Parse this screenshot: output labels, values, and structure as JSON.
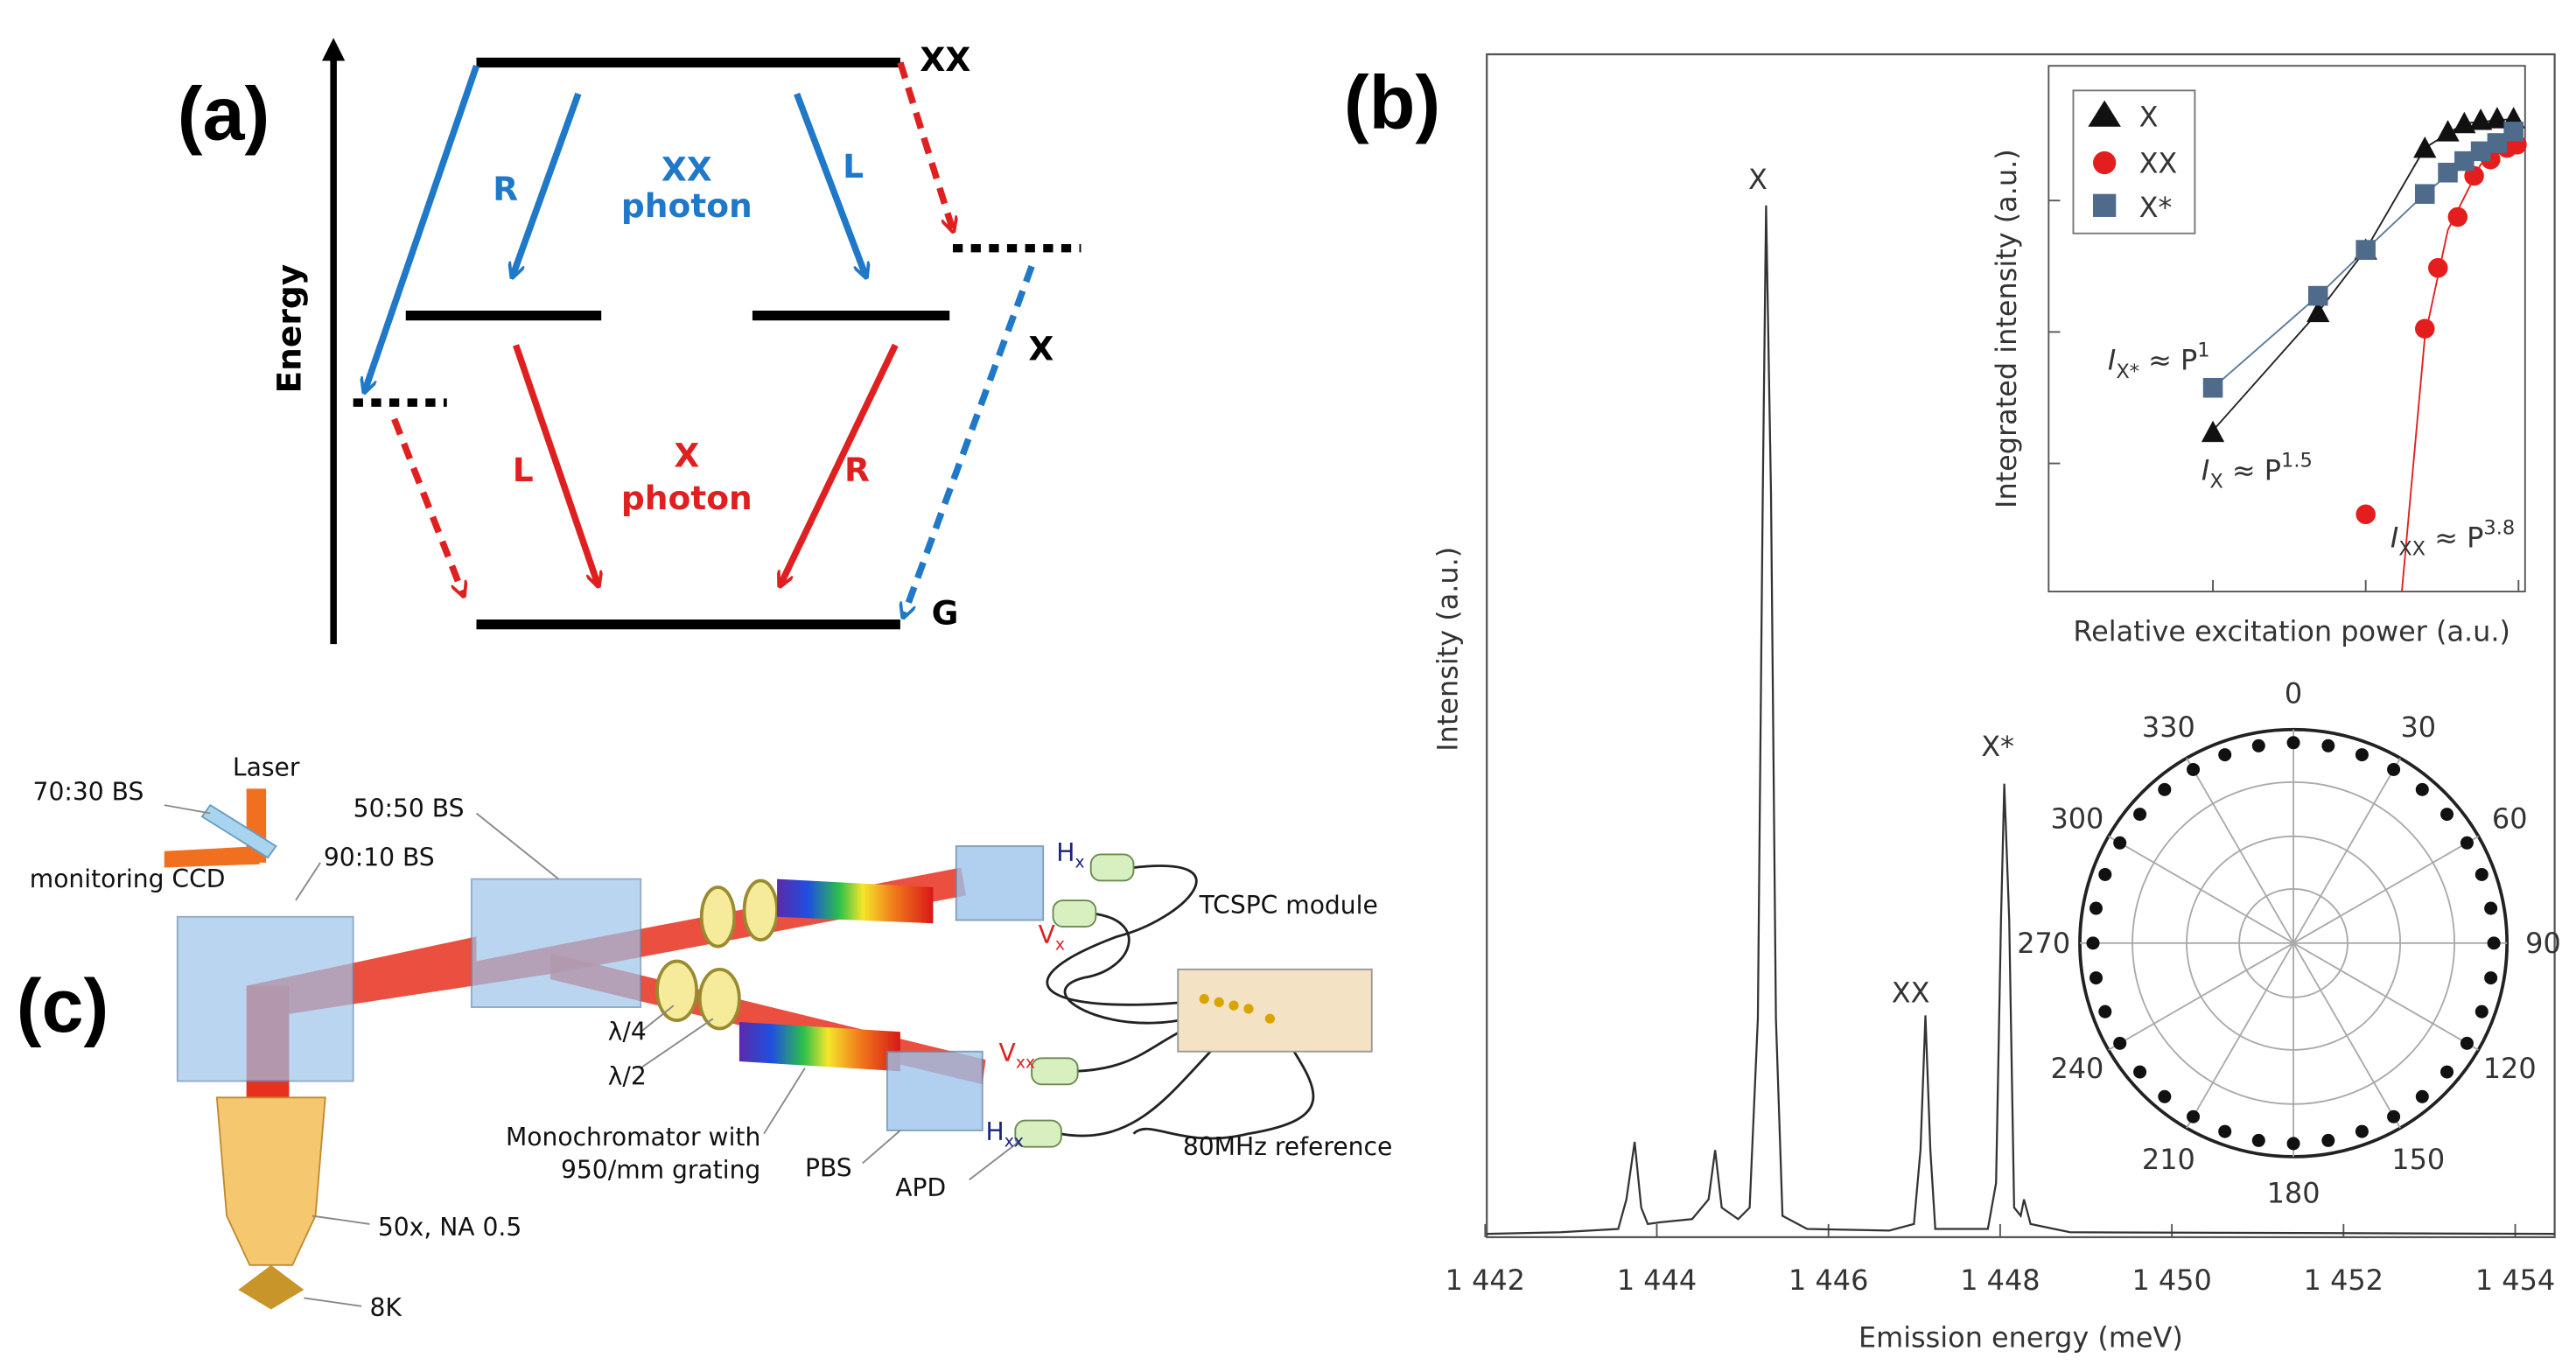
{
  "panel_a": {
    "label": "(a)",
    "axis_label": "Energy",
    "levels": {
      "xx": "XX",
      "x": "X",
      "g": "G"
    },
    "transitions": [
      "R",
      "L",
      "L",
      "R"
    ],
    "xx_photon": [
      "XX",
      "photon"
    ],
    "x_photon": [
      "X",
      "photon"
    ]
  },
  "panel_b": {
    "label": "(b)",
    "xlabel": "Emission energy (meV)",
    "ylabel": "Intensity (a.u.)",
    "xticks": [
      "1 442",
      "1 444",
      "1 446",
      "1 448",
      "1 450",
      "1 452",
      "1 454"
    ],
    "peaks": {
      "x": "X",
      "xx": "XX",
      "x_star": "X*"
    },
    "inset_power": {
      "xlabel": "Relative excitation power (a.u.)",
      "ylabel": "Integrated intensity (a.u.)",
      "legend": [
        "X",
        "XX",
        "X*"
      ],
      "fits": [
        {
          "base": "I",
          "sub": "X*",
          "rel": " ≈ P",
          "sup": "1"
        },
        {
          "base": "I",
          "sub": "X",
          "rel": " ≈ P",
          "sup": "1.5"
        },
        {
          "base": "I",
          "sub": "XX",
          "rel": " ≈ P",
          "sup": "3.8"
        }
      ]
    },
    "inset_polar": {
      "angles": [
        "0",
        "30",
        "60",
        "90",
        "120",
        "150",
        "180",
        "210",
        "240",
        "270",
        "300",
        "330"
      ]
    }
  },
  "panel_c": {
    "label": "(c)",
    "laser": "Laser",
    "bs_7030": "70:30 BS",
    "ccd": "monitoring CCD",
    "bs_9010": "90:10 BS",
    "bs_5050": "50:50 BS",
    "tcspc": "TCSPC module",
    "qwp": "λ/4",
    "hwp": "λ/2",
    "mono": [
      "Monochromator with",
      "950/mm grating"
    ],
    "pbs": "PBS",
    "apd": "APD",
    "reference": "80MHz reference",
    "objective": "50x, NA 0.5",
    "temp": "8K",
    "ports": [
      {
        "letter": "H",
        "sub": "x"
      },
      {
        "letter": "V",
        "sub": "x"
      },
      {
        "letter": "V",
        "sub": "xx"
      },
      {
        "letter": "H",
        "sub": "xx"
      }
    ]
  }
}
